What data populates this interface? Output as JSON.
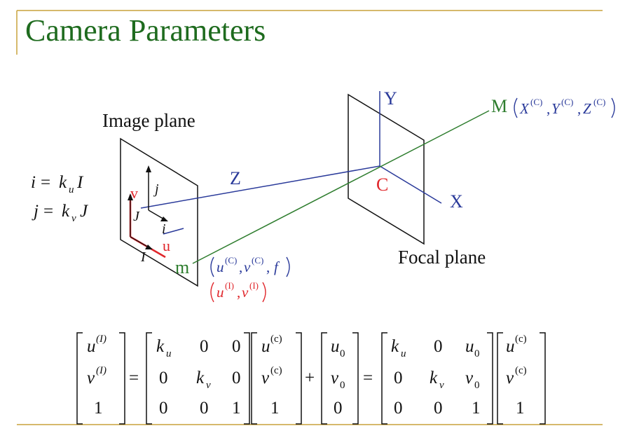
{
  "slide": {
    "title": "Camera Parameters"
  },
  "labels": {
    "image_plane": "Image plane",
    "focal_plane": "Focal plane",
    "Y": "Y",
    "X": "X",
    "Z": "Z",
    "C": "C",
    "M": "M",
    "m": "m",
    "u": "u",
    "v": "v",
    "i": "i",
    "j": "j",
    "I": "I",
    "J": "J"
  },
  "equations": {
    "i_eq": {
      "lhs": "i",
      "eq": "=",
      "k": "k",
      "sub": "u",
      "rhs": "I"
    },
    "j_eq": {
      "lhs": "j",
      "eq": "=",
      "k": "k",
      "sub": "v",
      "rhs": "J"
    }
  },
  "points": {
    "M_coords": {
      "x": "X",
      "y": "Y",
      "z": "Z",
      "sup": "(C)"
    },
    "m_camera": {
      "u": "u",
      "v": "v",
      "sup": "(C)",
      "f": "f"
    },
    "m_image": {
      "u": "u",
      "v": "v",
      "sup": "(I)"
    }
  },
  "matrix_eq": {
    "lhs": [
      "u",
      "v",
      "1"
    ],
    "lhs_sup": "(I)",
    "eq": "=",
    "plus": "+",
    "k_u": "k",
    "k_u_sub": "u",
    "k_v": "k",
    "k_v_sub": "v",
    "u0": "u",
    "u0_sub": "0",
    "v0": "v",
    "v0_sub": "0",
    "zero": "0",
    "one": "1",
    "vec_sup": "(c)"
  },
  "colors": {
    "title": "#1e6b1e",
    "green": "#2e7d2e",
    "blue": "#2a3a9a",
    "red": "#e0262b",
    "rule": "#c9a23c",
    "black": "#111111"
  }
}
